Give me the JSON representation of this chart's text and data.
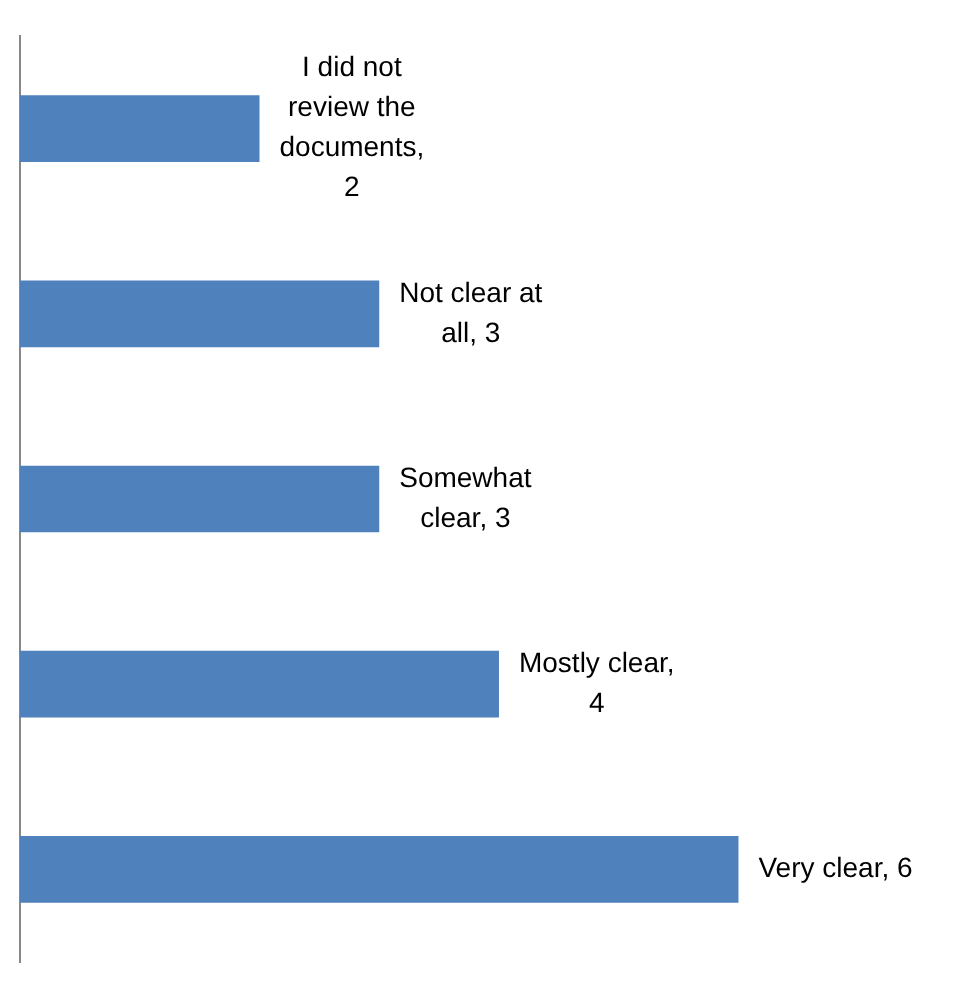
{
  "chart_data": {
    "type": "bar",
    "orientation": "horizontal",
    "categories": [
      null,
      null,
      null,
      null,
      null
    ],
    "values": [
      2,
      3,
      3,
      4,
      6
    ],
    "color": "#4f81bd",
    "value_labels": [
      "I did not review the documents, 2",
      "Not clear at all, 3",
      "Somewhat clear, 3",
      "Mostly clear, 4",
      "Very clear, 6"
    ],
    "tick_labels": false,
    "legend": false
  }
}
